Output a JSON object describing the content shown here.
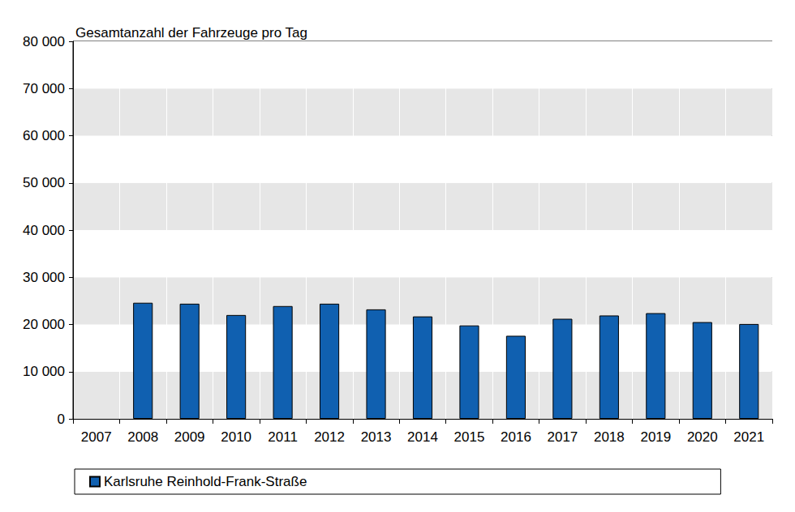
{
  "chart_data": {
    "type": "bar",
    "title": "Gesamtanzahl der Fahrzeuge pro Tag",
    "categories": [
      "2007",
      "2008",
      "2009",
      "2010",
      "2011",
      "2012",
      "2013",
      "2014",
      "2015",
      "2016",
      "2017",
      "2018",
      "2019",
      "2020",
      "2021"
    ],
    "series": [
      {
        "name": "Karlsruhe Reinhold-Frank-Straße",
        "color": "#1060b0",
        "values": [
          null,
          24600,
          24400,
          22000,
          23900,
          24400,
          23200,
          21700,
          19800,
          17600,
          21200,
          21900,
          22400,
          20500,
          20100
        ]
      }
    ],
    "ylim": [
      0,
      80000
    ],
    "yticks": [
      0,
      {
        "value": 10000,
        "label": "10 000"
      },
      {
        "value": 20000,
        "label": "20 000"
      },
      {
        "value": 30000,
        "label": "30 000"
      },
      {
        "value": 40000,
        "label": "40 000"
      },
      {
        "value": 50000,
        "label": "50 000"
      },
      {
        "value": 60000,
        "label": "60 000"
      },
      {
        "value": 70000,
        "label": "70 000"
      },
      {
        "value": 80000,
        "label": "80 000"
      }
    ],
    "grid": true,
    "legend": "bottom"
  }
}
